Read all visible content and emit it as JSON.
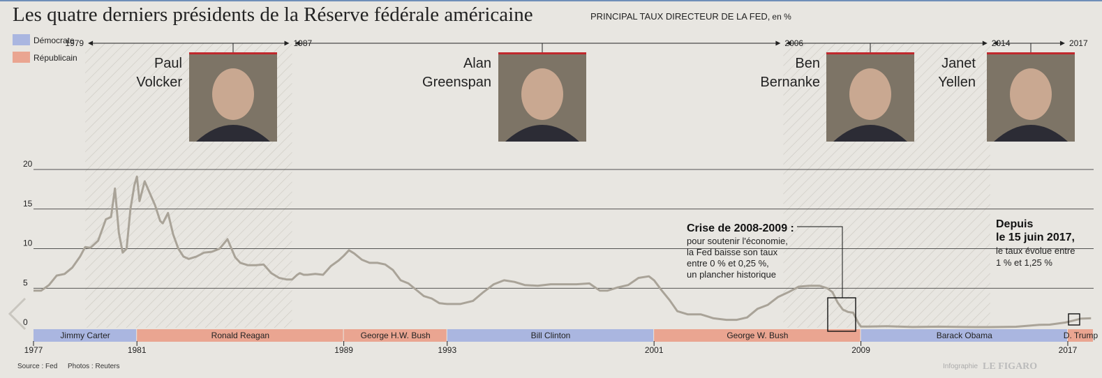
{
  "header": {
    "title": "Les quatre derniers présidents de la Réserve fédérale américaine",
    "subtitle": "PRINCIPAL TAUX DIRECTEUR DE LA FED,",
    "subtitle_unit": "en %"
  },
  "legend": {
    "items": [
      {
        "label": "Démocrate",
        "color": "#aab6e0"
      },
      {
        "label": "Républicain",
        "color": "#eaa591"
      }
    ]
  },
  "fed_chairs": [
    {
      "first": "Paul",
      "last": "Volcker",
      "start": 1979,
      "end": 1987,
      "start_label": "1979",
      "end_label": "1987",
      "photo_icon": "portrait-volcker-photo"
    },
    {
      "first": "Alan",
      "last": "Greenspan",
      "start": 1987,
      "end": 2006,
      "start_label": "",
      "end_label": "2006",
      "photo_icon": "portrait-greenspan-photo"
    },
    {
      "first": "Ben",
      "last": "Bernanke",
      "start": 2006,
      "end": 2014,
      "start_label": "",
      "end_label": "2014",
      "photo_icon": "portrait-bernanke-photo"
    },
    {
      "first": "Janet",
      "last": "Yellen",
      "start": 2014,
      "end": 2017,
      "start_label": "",
      "end_label": "2017",
      "photo_icon": "portrait-yellen-photo"
    }
  ],
  "us_presidents": [
    {
      "name": "Jimmy Carter",
      "start": 1977,
      "end": 1981,
      "party": "D"
    },
    {
      "name": "Ronald Reagan",
      "start": 1981,
      "end": 1989,
      "party": "R"
    },
    {
      "name": "George H.W. Bush",
      "start": 1989,
      "end": 1993,
      "party": "R"
    },
    {
      "name": "Bill Clinton",
      "start": 1993,
      "end": 2001,
      "party": "D"
    },
    {
      "name": "George W. Bush",
      "start": 2001,
      "end": 2009,
      "party": "R"
    },
    {
      "name": "Barack Obama",
      "start": 2009,
      "end": 2017,
      "party": "D"
    },
    {
      "name": "D. Trump",
      "start": 2017,
      "end": 2018,
      "party": "R"
    }
  ],
  "year_ticks": [
    "1977",
    "1981",
    "1989",
    "1993",
    "2001",
    "2009",
    "2017"
  ],
  "annotations": {
    "crisis": {
      "title": "Crise de 2008-2009 :",
      "lines": [
        "pour soutenir l'économie,",
        "la Fed baisse son taux",
        "entre 0 % et 0,25 %,",
        "un plancher historique"
      ]
    },
    "since": {
      "title_lines": [
        "Depuis",
        "le 15 juin 2017,"
      ],
      "lines": [
        "le taux évolue entre",
        "1 % et 1,25 %"
      ]
    }
  },
  "footer": {
    "source": "Source : Fed",
    "photos": "Photos : Reuters",
    "credit_label": "Infographie",
    "credit_brand": "LE FIGARO"
  },
  "chart_data": {
    "type": "line",
    "title": "PRINCIPAL TAUX DIRECTEUR DE LA FED, en %",
    "xlabel": "",
    "ylabel": "",
    "ylim": [
      0,
      20
    ],
    "xlim": [
      1977,
      2018
    ],
    "yticks": [
      0,
      5,
      10,
      15,
      20
    ],
    "grid": true,
    "series": [
      {
        "name": "",
        "color": "#a9a398",
        "x": [
          1977.0,
          1977.3,
          1977.6,
          1977.9,
          1978.2,
          1978.5,
          1978.8,
          1979.0,
          1979.2,
          1979.5,
          1979.8,
          1980.0,
          1980.15,
          1980.3,
          1980.45,
          1980.6,
          1980.75,
          1980.9,
          1981.0,
          1981.1,
          1981.3,
          1981.5,
          1981.7,
          1981.9,
          1982.0,
          1982.2,
          1982.4,
          1982.6,
          1982.8,
          1983.0,
          1983.3,
          1983.6,
          1983.9,
          1984.2,
          1984.5,
          1984.8,
          1985.0,
          1985.3,
          1985.6,
          1985.9,
          1986.2,
          1986.5,
          1986.8,
          1987.0,
          1987.2,
          1987.3,
          1987.45,
          1987.6,
          1987.9,
          1988.2,
          1988.5,
          1988.8,
          1989.0,
          1989.2,
          1989.4,
          1989.7,
          1990.0,
          1990.3,
          1990.6,
          1990.9,
          1991.2,
          1991.5,
          1991.8,
          1992.1,
          1992.4,
          1992.7,
          1993.0,
          1993.5,
          1994.0,
          1994.4,
          1994.8,
          1995.2,
          1995.6,
          1996.0,
          1996.5,
          1997.0,
          1997.5,
          1998.0,
          1998.5,
          1998.9,
          1999.2,
          1999.6,
          2000.0,
          2000.4,
          2000.8,
          2001.0,
          2001.3,
          2001.6,
          2001.9,
          2002.3,
          2002.8,
          2003.3,
          2003.8,
          2004.2,
          2004.6,
          2005.0,
          2005.4,
          2005.8,
          2006.2,
          2006.6,
          2007.0,
          2007.4,
          2007.7,
          2007.9,
          2008.1,
          2008.3,
          2008.5,
          2008.7,
          2008.9,
          2009.0,
          2009.3,
          2010.0,
          2011.0,
          2012.0,
          2013.0,
          2014.0,
          2015.0,
          2015.9,
          2016.3,
          2016.9,
          2017.2,
          2017.5,
          2017.9
        ],
        "y": [
          4.7,
          4.7,
          5.4,
          6.6,
          6.8,
          7.6,
          9.0,
          10.2,
          10.1,
          11.0,
          13.7,
          14.0,
          17.6,
          12.0,
          9.5,
          10.0,
          15.0,
          18.0,
          19.1,
          16.0,
          18.5,
          17.0,
          15.5,
          13.5,
          13.2,
          14.5,
          11.8,
          10.0,
          9.0,
          8.7,
          9.0,
          9.5,
          9.6,
          10.0,
          11.2,
          8.9,
          8.2,
          7.9,
          7.9,
          8.0,
          6.9,
          6.3,
          6.1,
          6.1,
          6.7,
          6.9,
          6.7,
          6.7,
          6.8,
          6.7,
          7.8,
          8.5,
          9.1,
          9.8,
          9.4,
          8.6,
          8.2,
          8.2,
          8.0,
          7.3,
          6.0,
          5.6,
          4.8,
          4.0,
          3.7,
          3.1,
          3.0,
          3.0,
          3.4,
          4.5,
          5.5,
          6.0,
          5.8,
          5.4,
          5.3,
          5.5,
          5.5,
          5.5,
          5.6,
          4.7,
          4.7,
          5.1,
          5.4,
          6.3,
          6.5,
          6.0,
          4.7,
          3.5,
          2.1,
          1.7,
          1.7,
          1.2,
          1.0,
          1.0,
          1.3,
          2.4,
          2.9,
          3.9,
          4.5,
          5.2,
          5.3,
          5.3,
          5.0,
          4.5,
          3.2,
          2.3,
          2.0,
          1.9,
          0.6,
          0.16,
          0.15,
          0.2,
          0.1,
          0.14,
          0.1,
          0.09,
          0.13,
          0.37,
          0.4,
          0.66,
          0.9,
          1.15,
          1.2
        ]
      }
    ]
  }
}
